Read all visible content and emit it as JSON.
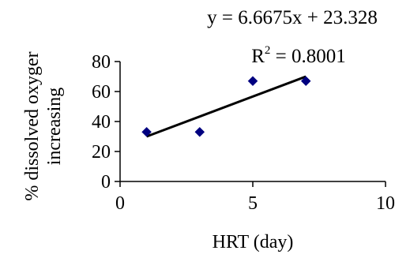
{
  "chart_data": {
    "type": "scatter",
    "xlabel": "HRT (day)",
    "ylabel_line1": "% dissolved oxyger",
    "ylabel_line2": "increasing",
    "xlim": [
      0,
      10
    ],
    "ylim": [
      0,
      80
    ],
    "x_ticks": [
      "0",
      "5",
      "10"
    ],
    "y_ticks": [
      "0",
      "20",
      "40",
      "60",
      "80"
    ],
    "x_tick_values": [
      0,
      5,
      10
    ],
    "y_tick_values": [
      0,
      20,
      40,
      60,
      80
    ],
    "points": [
      {
        "x": 1,
        "y": 33
      },
      {
        "x": 3,
        "y": 33
      },
      {
        "x": 5,
        "y": 67
      },
      {
        "x": 7,
        "y": 67
      }
    ],
    "trendline": {
      "slope": 6.6675,
      "intercept": 23.328,
      "x_start": 1,
      "x_end": 7
    },
    "equation_label": "y = 6.6675x + 23.328",
    "r2_prefix": "R",
    "r2_sup": "2",
    "r2_rest": " = 0.8001",
    "marker_color": "#000080",
    "line_color": "#000000",
    "grid": false,
    "legend": "none"
  }
}
